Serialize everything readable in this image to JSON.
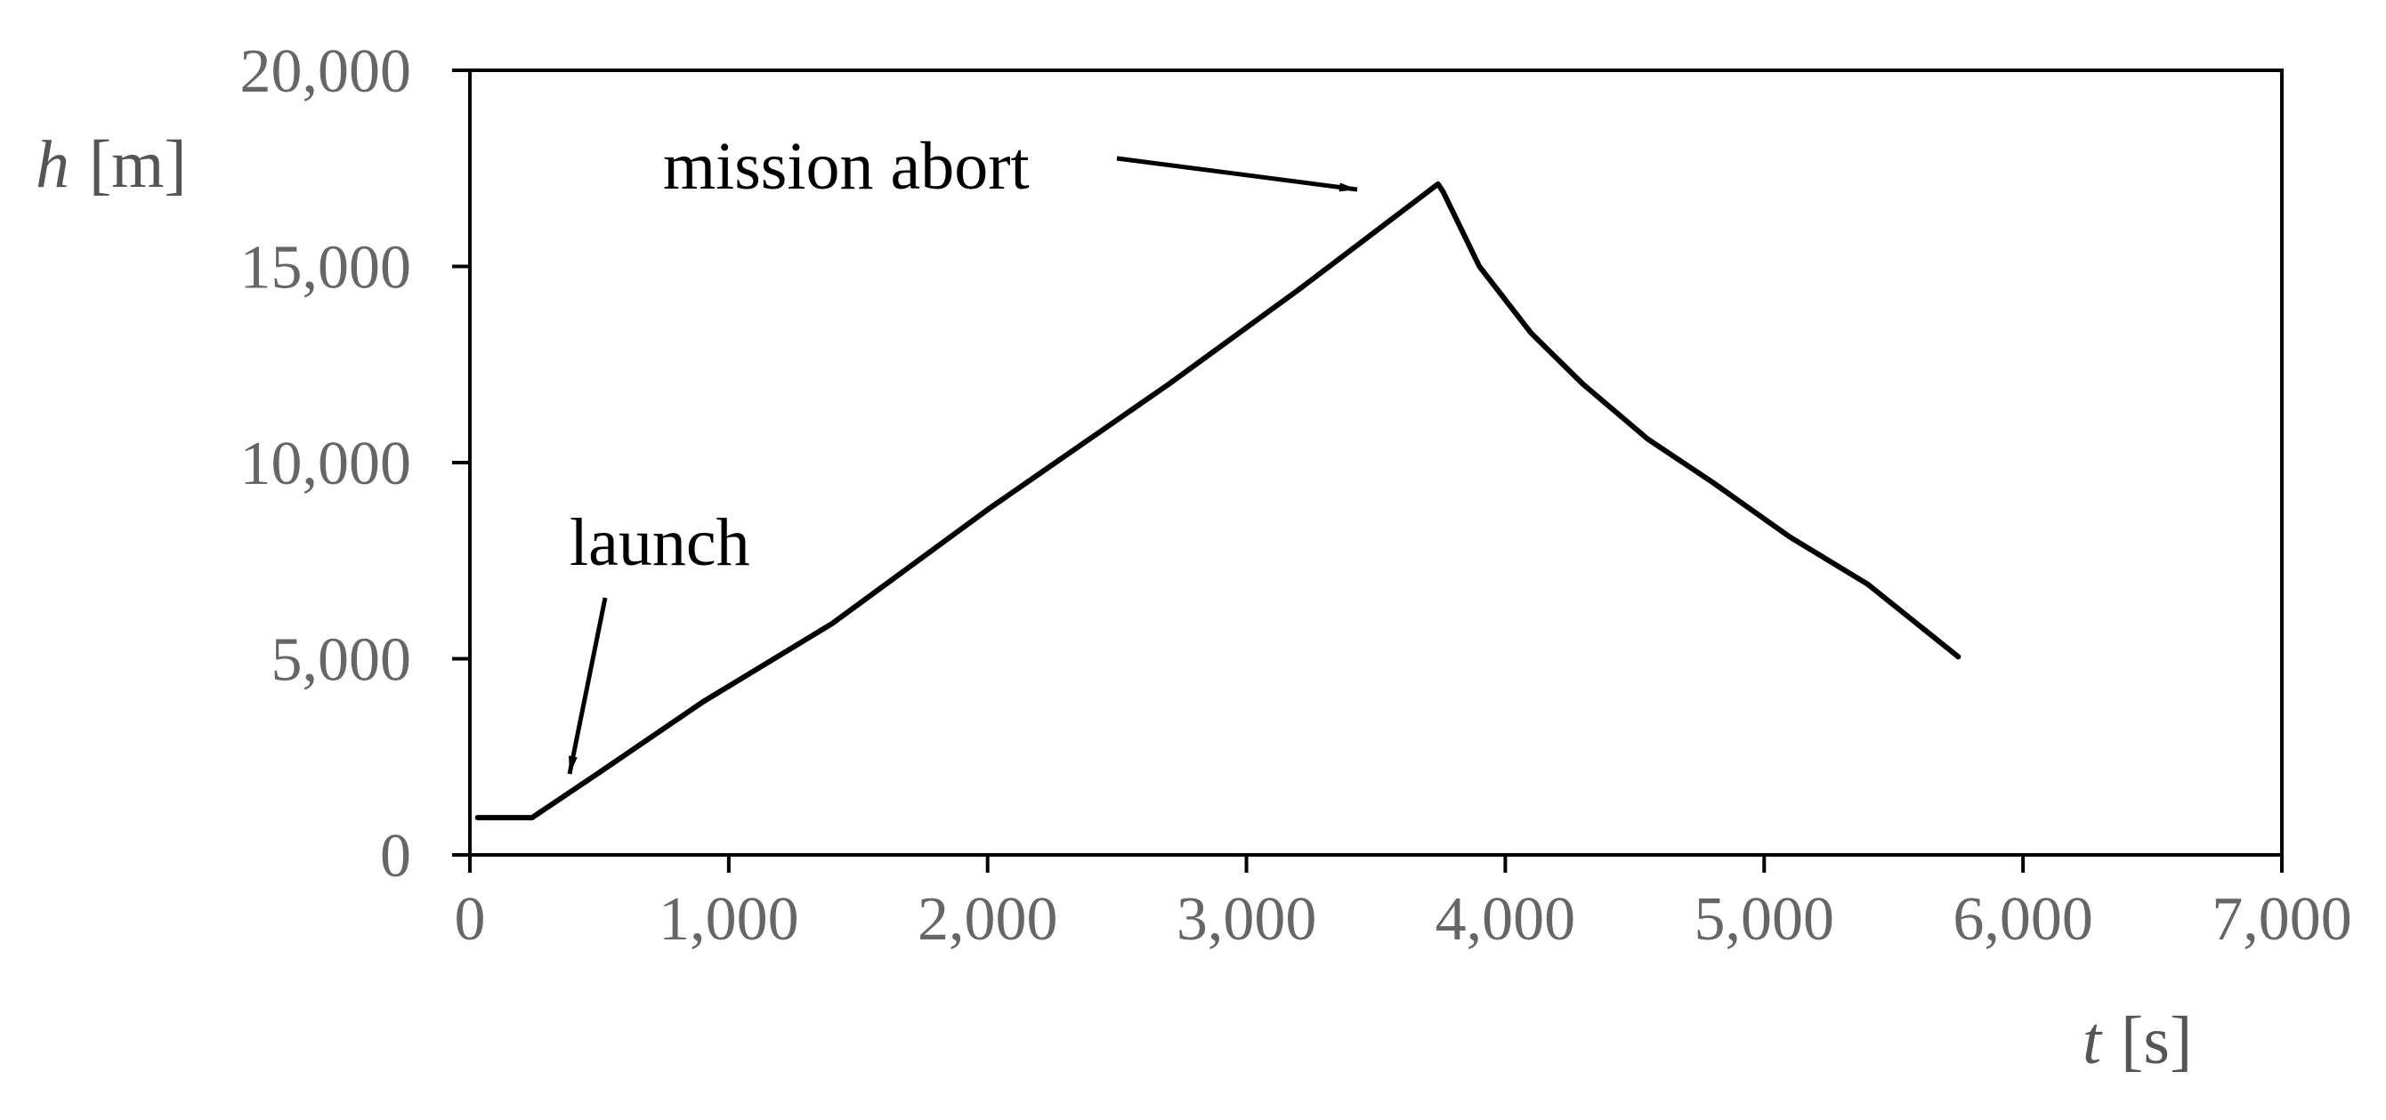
{
  "chart_data": {
    "type": "line",
    "x_axis": {
      "label_var": "t",
      "label_unit": "[s]",
      "range": [
        0,
        7000
      ],
      "ticks": [
        0,
        1000,
        2000,
        3000,
        4000,
        5000,
        6000,
        7000
      ],
      "tick_labels": [
        "0",
        "1,000",
        "2,000",
        "3,000",
        "4,000",
        "5,000",
        "6,000",
        "7,000"
      ]
    },
    "y_axis": {
      "label_var": "h",
      "label_unit": "[m]",
      "range": [
        0,
        20000
      ],
      "ticks": [
        0,
        5000,
        10000,
        15000,
        20000
      ],
      "tick_labels": [
        "0",
        "5,000",
        "10,000",
        "15,000",
        "20,000"
      ]
    },
    "grid": false,
    "legend": "none",
    "series": [
      {
        "color": "#000000",
        "x": [
          30,
          240,
          500,
          900,
          1400,
          2000,
          2700,
          3200,
          3500,
          3740,
          3760,
          3900,
          4100,
          4300,
          4550,
          4800,
          5100,
          5400,
          5750
        ],
        "y": [
          950,
          950,
          2100,
          3900,
          5900,
          8800,
          12000,
          14400,
          15900,
          17100,
          16900,
          15000,
          13300,
          12000,
          10600,
          9500,
          8100,
          6900,
          5050
        ]
      }
    ],
    "annotations": [
      {
        "text": "mission abort",
        "arrow_to": [
          3750,
          17100
        ]
      },
      {
        "text": "launch",
        "arrow_to": [
          350,
          2000
        ]
      }
    ]
  },
  "colors": {
    "axis": "#000000",
    "tick_label": "#666666",
    "axis_label": "#555555",
    "line": "#000000",
    "annotation": "#000000"
  }
}
